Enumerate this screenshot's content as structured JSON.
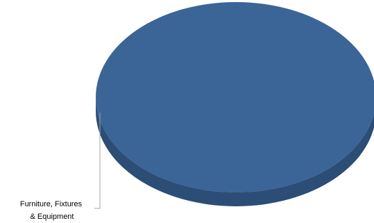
{
  "chart_data": {
    "type": "pie",
    "style": "3d",
    "categories": [
      "Furniture, Fixtures & Equipment"
    ],
    "values": [
      100
    ],
    "colors": {
      "slice_top": "#3B6597",
      "slice_side": "#2C4D75",
      "leader_line": "#A6A6A6"
    },
    "labels": [
      {
        "lines": [
          "Furniture, Fixtures",
          "& Equipment"
        ]
      }
    ],
    "legend": "none"
  }
}
